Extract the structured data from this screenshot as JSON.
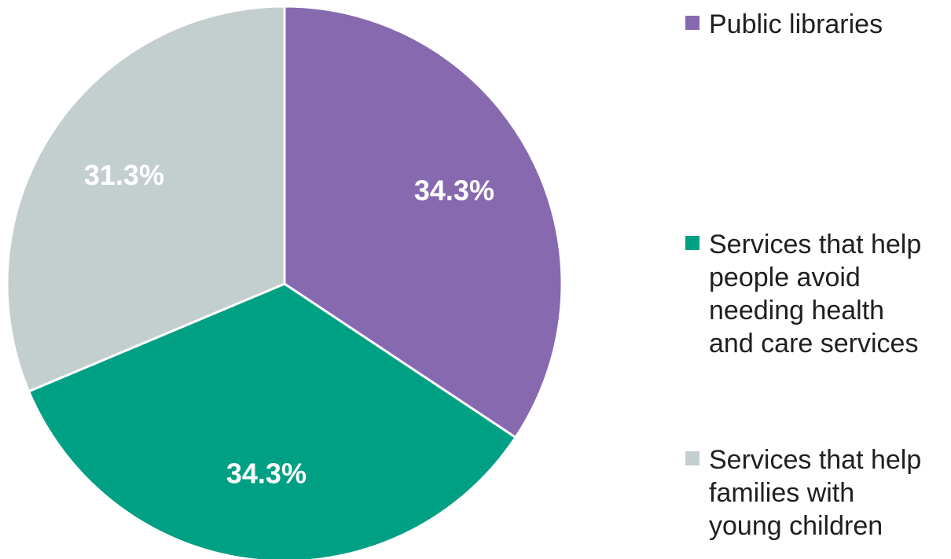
{
  "chart_data": {
    "type": "pie",
    "title": "",
    "slices": [
      {
        "label": "Public libraries",
        "value": 34.3,
        "display": "34.3%",
        "color": "#8769b0"
      },
      {
        "label": "Services that help people avoid needing health and care services",
        "value": 34.3,
        "display": "34.3%",
        "color": "#00a085"
      },
      {
        "label": "Services that help families with young children",
        "value": 31.3,
        "display": "31.3%",
        "color": "#c3cfcf"
      }
    ],
    "legend_position": "right",
    "start_angle": "top",
    "direction": "clockwise"
  },
  "legend": {
    "items": [
      {
        "text": "Public libraries"
      },
      {
        "text": "Services that help\npeople avoid\nneeding health\nand care services"
      },
      {
        "text": "Services that help\nfamilies with\nyoung children"
      }
    ]
  }
}
